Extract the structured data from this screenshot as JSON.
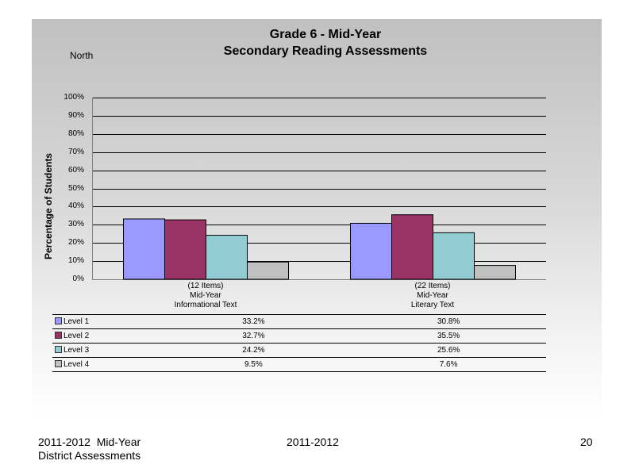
{
  "chart_data": {
    "type": "bar",
    "title": "Grade 6 - Mid-Year",
    "subtitle": "Secondary Reading Assessments",
    "region": "North",
    "ylabel": "Percentage of Students",
    "ylim": [
      0,
      100
    ],
    "yticks": [
      "0%",
      "10%",
      "20%",
      "30%",
      "40%",
      "50%",
      "60%",
      "70%",
      "80%",
      "90%",
      "100%"
    ],
    "grid": true,
    "categories": [
      {
        "items": "(12 Items)",
        "period": "Mid-Year",
        "name": "Informational Text"
      },
      {
        "items": "(22 Items)",
        "period": "Mid-Year",
        "name": "Literary Text"
      }
    ],
    "series": [
      {
        "name": "Level 1",
        "color": "#9999ff",
        "values": [
          33.2,
          30.8
        ],
        "labels": [
          "33.2%",
          "30.8%"
        ]
      },
      {
        "name": "Level 2",
        "color": "#993366",
        "values": [
          32.7,
          35.5
        ],
        "labels": [
          "32.7%",
          "35.5%"
        ]
      },
      {
        "name": "Level 3",
        "color": "#92cdd4",
        "values": [
          24.2,
          25.6
        ],
        "labels": [
          "24.2%",
          "25.6%"
        ]
      },
      {
        "name": "Level 4",
        "color": "#c0c0c0",
        "values": [
          9.5,
          7.6
        ],
        "labels": [
          "9.5%",
          "7.6%"
        ]
      }
    ]
  },
  "footer": {
    "left_line1": "2011-2012  Mid-Year",
    "left_line2": "District Assessments",
    "center": "2011-2012",
    "page_number": "20"
  }
}
